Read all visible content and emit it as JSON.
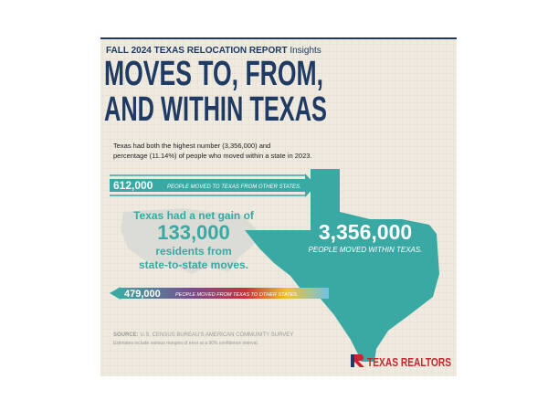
{
  "header": {
    "report": "FALL 2024 TEXAS RELOCATION REPORT",
    "label": "Insights"
  },
  "title": {
    "lines": [
      "MOVES TO, FROM,",
      "AND WITHIN TEXAS"
    ]
  },
  "intro": {
    "lines": [
      "Texas had both the highest number (3,356,000) and",
      "percentage (11.14%) of people who moved within a state in 2023."
    ]
  },
  "moved_in": {
    "number": "612,000",
    "text": "PEOPLE MOVED TO TEXAS FROM OTHER STATES."
  },
  "net_gain": {
    "lines": [
      "Texas had a net gain of",
      "133,000",
      "residents from",
      "state-to-state moves."
    ]
  },
  "within": {
    "number": "3,356,000",
    "text": "PEOPLE MOVED WITHIN TEXAS."
  },
  "moved_out": {
    "number": "479,000",
    "text": "PEOPLE MOVED FROM TEXAS TO OTHER STATES."
  },
  "source": {
    "label": "SOURCE:",
    "text": "U.S. CENSUS BUREAU'S AMERICAN COMMUNITY SURVEY",
    "note": "Estimates include various margins of error at a 90% confidence interval."
  },
  "logo": {
    "text": "TEXAS REALTORS"
  }
}
